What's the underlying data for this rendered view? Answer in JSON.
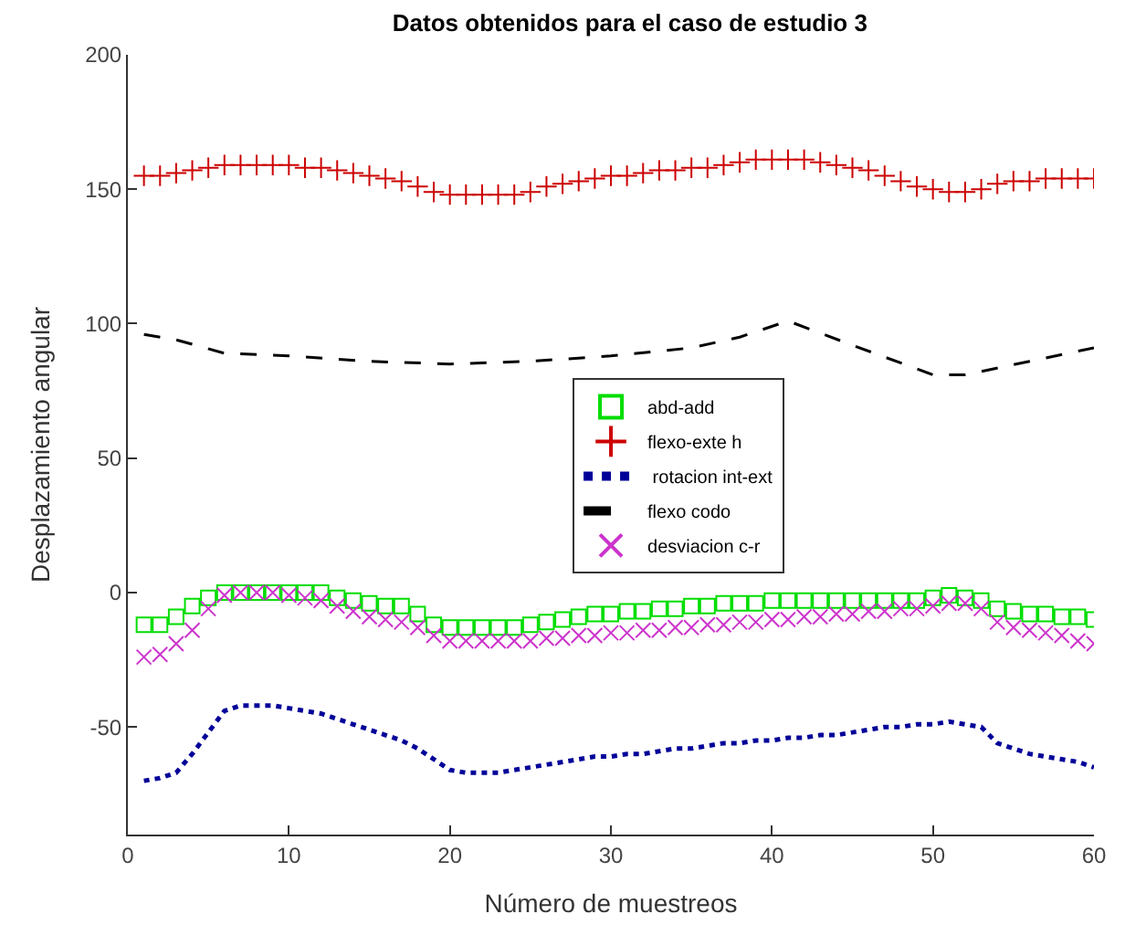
{
  "chart_data": {
    "type": "scatter",
    "title": "Datos obtenidos para el caso de estudio 3",
    "xlabel": "Número de muestreos",
    "ylabel": "Desplazamiento angular",
    "x": [
      1,
      2,
      3,
      4,
      5,
      6,
      7,
      8,
      9,
      10,
      11,
      12,
      13,
      14,
      15,
      16,
      17,
      18,
      19,
      20,
      21,
      22,
      23,
      24,
      25,
      26,
      27,
      28,
      29,
      30,
      31,
      32,
      33,
      34,
      35,
      36,
      37,
      38,
      39,
      40,
      41,
      42,
      43,
      44,
      45,
      46,
      47,
      48,
      49,
      50,
      51,
      52,
      53,
      54,
      55,
      56,
      57,
      58,
      59,
      60
    ],
    "xlim": [
      0,
      60
    ],
    "xticks": [
      0,
      10,
      20,
      30,
      40,
      50,
      60
    ],
    "ylim": [
      -90,
      200
    ],
    "yticks": [
      -50,
      0,
      50,
      100,
      150,
      200
    ],
    "legend": "center",
    "series": [
      {
        "name": "abd-add",
        "marker": "square",
        "color": "#00dd00",
        "values": [
          -12,
          -12,
          -9,
          -5,
          -2,
          0,
          0,
          0,
          0,
          0,
          0,
          0,
          -2,
          -3,
          -4,
          -5,
          -5,
          -8,
          -12,
          -13,
          -13,
          -13,
          -13,
          -13,
          -12,
          -11,
          -10,
          -9,
          -8,
          -8,
          -7,
          -7,
          -6,
          -6,
          -5,
          -5,
          -4,
          -4,
          -4,
          -3,
          -3,
          -3,
          -3,
          -3,
          -3,
          -3,
          -3,
          -3,
          -3,
          -2,
          -1,
          -2,
          -3,
          -6,
          -7,
          -8,
          -8,
          -9,
          -9,
          -10
        ]
      },
      {
        "name": "flexo-exte h",
        "marker": "cross",
        "color": "#cc0000",
        "values": [
          155,
          155,
          156,
          157,
          158,
          159,
          159,
          159,
          159,
          159,
          158,
          158,
          157,
          156,
          155,
          154,
          153,
          151,
          149,
          148,
          148,
          148,
          148,
          148,
          149,
          151,
          152,
          153,
          154,
          155,
          155,
          156,
          157,
          157,
          158,
          158,
          159,
          160,
          161,
          161,
          161,
          161,
          160,
          159,
          158,
          157,
          155,
          153,
          151,
          150,
          149,
          149,
          150,
          152,
          153,
          153,
          154,
          154,
          154,
          154
        ]
      },
      {
        "name": " rotacion int-ext",
        "type": "line",
        "line_style": "dotted",
        "color": "#000099",
        "values": [
          -70,
          -69,
          -67,
          -60,
          -52,
          -44,
          -42,
          -42,
          -42,
          -43,
          -44,
          -45,
          -47,
          -49,
          -51,
          -53,
          -55,
          -58,
          -62,
          -66,
          -67,
          -67,
          -67,
          -66,
          -65,
          -64,
          -63,
          -62,
          -61,
          -61,
          -60,
          -60,
          -59,
          -58,
          -58,
          -57,
          -56,
          -56,
          -55,
          -55,
          -54,
          -54,
          -53,
          -53,
          -52,
          -51,
          -50,
          -50,
          -49,
          -49,
          -48,
          -49,
          -50,
          -56,
          -58,
          -60,
          -61,
          -62,
          -63,
          -65
        ]
      },
      {
        "name": "flexo codo",
        "type": "line",
        "line_style": "dashed",
        "color": "#000000",
        "x": [
          1,
          3,
          6,
          10,
          15,
          20,
          25,
          30,
          35,
          38,
          41,
          45,
          50,
          52,
          56,
          60
        ],
        "values": [
          96,
          94,
          89,
          88,
          86,
          85,
          86,
          88,
          91,
          95,
          101,
          92,
          81,
          81,
          86,
          91
        ]
      },
      {
        "name": "desviacion c-r",
        "marker": "x",
        "color": "#cc33cc",
        "values": [
          -24,
          -23,
          -19,
          -14,
          -6,
          -1,
          0,
          0,
          0,
          -1,
          -2,
          -3,
          -5,
          -7,
          -9,
          -10,
          -11,
          -13,
          -16,
          -18,
          -18,
          -18,
          -18,
          -18,
          -18,
          -17,
          -17,
          -16,
          -16,
          -15,
          -15,
          -14,
          -14,
          -13,
          -13,
          -12,
          -12,
          -11,
          -11,
          -10,
          -10,
          -9,
          -9,
          -8,
          -8,
          -7,
          -7,
          -6,
          -6,
          -5,
          -4,
          -4,
          -6,
          -11,
          -13,
          -14,
          -15,
          -16,
          -18,
          -19
        ]
      }
    ]
  }
}
